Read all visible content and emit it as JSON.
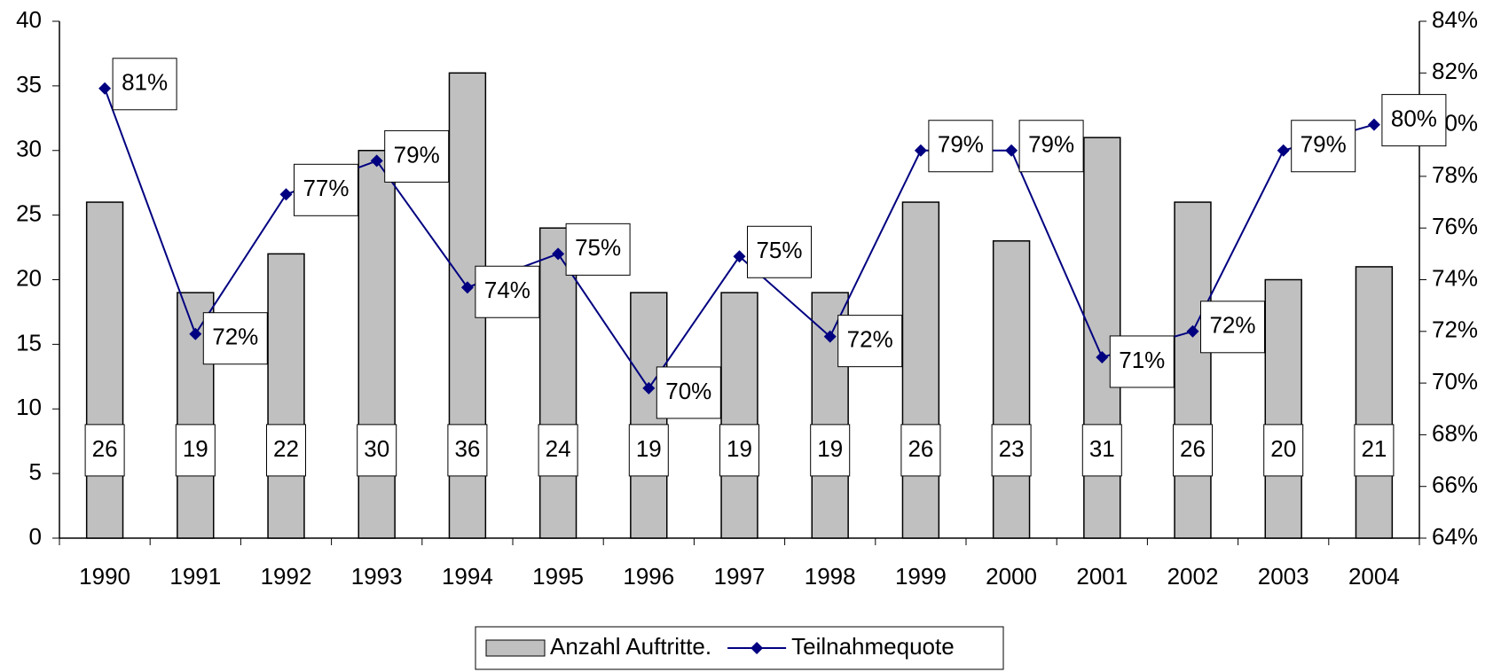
{
  "chart_data": {
    "type": "bar",
    "categories": [
      "1990",
      "1991",
      "1992",
      "1993",
      "1994",
      "1995",
      "1996",
      "1997",
      "1998",
      "1999",
      "2000",
      "2001",
      "2002",
      "2003",
      "2004"
    ],
    "series": [
      {
        "name": "Anzahl Auftritte.",
        "type": "bar",
        "color": "#c0c0c0",
        "values": [
          26,
          19,
          22,
          30,
          36,
          24,
          19,
          19,
          19,
          26,
          23,
          31,
          26,
          20,
          21
        ]
      },
      {
        "name": "Teilnahmequote",
        "type": "line",
        "axis": "y2",
        "color": "#000080",
        "values": [
          81.4,
          71.9,
          77.3,
          78.6,
          73.7,
          75.0,
          69.8,
          74.9,
          71.8,
          79.0,
          79.0,
          71.0,
          72.0,
          79.0,
          80.0
        ],
        "value_labels": [
          "81%",
          "72%",
          "77%",
          "79%",
          "74%",
          "75%",
          "70%",
          "75%",
          "72%",
          "79%",
          "79%",
          "71%",
          "72%",
          "79%",
          "80%"
        ]
      }
    ],
    "ylim": [
      0,
      40
    ],
    "yticks": [
      0,
      5,
      10,
      15,
      20,
      25,
      30,
      35,
      40
    ],
    "y2lim": [
      64,
      84
    ],
    "y2ticks": [
      {
        "value": 64,
        "label": "64%"
      },
      {
        "value": 66,
        "label": "66%"
      },
      {
        "value": 68,
        "label": "68%"
      },
      {
        "value": 70,
        "label": "70%"
      },
      {
        "value": 72,
        "label": "72%"
      },
      {
        "value": 74,
        "label": "74%"
      },
      {
        "value": 76,
        "label": "76%"
      },
      {
        "value": 78,
        "label": "78%"
      },
      {
        "value": 80,
        "label": "80%"
      },
      {
        "value": 82,
        "label": "82%"
      },
      {
        "value": 84,
        "label": "84%"
      }
    ],
    "legend": "bottom"
  }
}
